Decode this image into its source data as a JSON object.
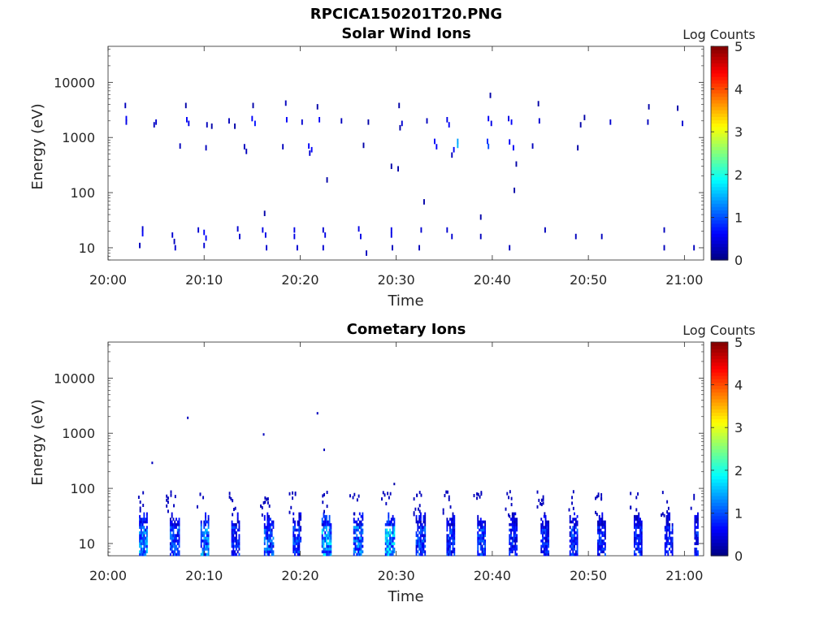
{
  "figure_title": "RPCICA150201T20.PNG",
  "chart_data": [
    {
      "type": "heatmap",
      "title": "Solar Wind Ions",
      "xlabel": "Time",
      "ylabel": "Energy (eV)",
      "y_scale": "log",
      "ylim": [
        6,
        45000
      ],
      "xlim": [
        "20:00",
        "21:02"
      ],
      "xticks": [
        "20:00",
        "20:10",
        "20:20",
        "20:30",
        "20:40",
        "20:50",
        "21:00"
      ],
      "yticks": [
        "10",
        "100",
        "1000",
        "10000"
      ],
      "colorbar": {
        "label": "Log Counts",
        "ticks": [
          "0",
          "1",
          "2",
          "3",
          "4",
          "5"
        ],
        "range": [
          0,
          5
        ],
        "colormap": "jet"
      },
      "grid": false,
      "cells_note": "x = minutes after 20:00, y = energy in eV, v = log counts",
      "cells": [
        {
          "x": 1.8,
          "y": 3800,
          "v": 0.3
        },
        {
          "x": 1.9,
          "y": 2200,
          "v": 0.6
        },
        {
          "x": 1.9,
          "y": 1900,
          "v": 0.5
        },
        {
          "x": 5.0,
          "y": 1900,
          "v": 0.4
        },
        {
          "x": 4.8,
          "y": 1700,
          "v": 0.3
        },
        {
          "x": 8.1,
          "y": 3800,
          "v": 0.2
        },
        {
          "x": 8.2,
          "y": 2100,
          "v": 0.6
        },
        {
          "x": 8.4,
          "y": 1800,
          "v": 0.5
        },
        {
          "x": 10.3,
          "y": 1700,
          "v": 0.3
        },
        {
          "x": 10.8,
          "y": 1600,
          "v": 0.2
        },
        {
          "x": 12.6,
          "y": 2000,
          "v": 0.3
        },
        {
          "x": 13.2,
          "y": 1600,
          "v": 0.2
        },
        {
          "x": 15.0,
          "y": 2200,
          "v": 0.6
        },
        {
          "x": 15.3,
          "y": 1800,
          "v": 0.7
        },
        {
          "x": 15.1,
          "y": 3800,
          "v": 0.2
        },
        {
          "x": 18.5,
          "y": 4200,
          "v": 0.3
        },
        {
          "x": 18.6,
          "y": 2100,
          "v": 0.6
        },
        {
          "x": 20.2,
          "y": 1900,
          "v": 0.4
        },
        {
          "x": 21.8,
          "y": 3600,
          "v": 0.2
        },
        {
          "x": 22.0,
          "y": 2100,
          "v": 0.6
        },
        {
          "x": 24.3,
          "y": 2000,
          "v": 0.3
        },
        {
          "x": 27.1,
          "y": 1900,
          "v": 0.2
        },
        {
          "x": 30.3,
          "y": 3800,
          "v": 0.2
        },
        {
          "x": 30.6,
          "y": 1800,
          "v": 0.4
        },
        {
          "x": 30.4,
          "y": 1500,
          "v": 0.2
        },
        {
          "x": 33.2,
          "y": 2000,
          "v": 0.3
        },
        {
          "x": 35.3,
          "y": 2100,
          "v": 0.5
        },
        {
          "x": 35.5,
          "y": 1700,
          "v": 0.6
        },
        {
          "x": 39.8,
          "y": 5800,
          "v": 0.2
        },
        {
          "x": 39.6,
          "y": 2200,
          "v": 0.6
        },
        {
          "x": 39.9,
          "y": 1800,
          "v": 0.5
        },
        {
          "x": 41.7,
          "y": 2200,
          "v": 0.5
        },
        {
          "x": 42.0,
          "y": 1900,
          "v": 0.6
        },
        {
          "x": 44.8,
          "y": 4100,
          "v": 0.2
        },
        {
          "x": 44.9,
          "y": 2000,
          "v": 0.4
        },
        {
          "x": 49.2,
          "y": 1700,
          "v": 0.2
        },
        {
          "x": 49.6,
          "y": 2300,
          "v": 0.2
        },
        {
          "x": 52.3,
          "y": 1900,
          "v": 0.4
        },
        {
          "x": 56.3,
          "y": 3600,
          "v": 0.2
        },
        {
          "x": 56.2,
          "y": 1900,
          "v": 0.3
        },
        {
          "x": 59.3,
          "y": 3400,
          "v": 0.2
        },
        {
          "x": 59.8,
          "y": 1800,
          "v": 0.4
        },
        {
          "x": 7.5,
          "y": 700,
          "v": 0.3
        },
        {
          "x": 10.2,
          "y": 650,
          "v": 0.3
        },
        {
          "x": 14.2,
          "y": 680,
          "v": 0.3
        },
        {
          "x": 14.4,
          "y": 560,
          "v": 0.3
        },
        {
          "x": 18.2,
          "y": 680,
          "v": 0.3
        },
        {
          "x": 20.9,
          "y": 700,
          "v": 0.6
        },
        {
          "x": 21.2,
          "y": 600,
          "v": 0.6
        },
        {
          "x": 21.0,
          "y": 520,
          "v": 0.4
        },
        {
          "x": 26.6,
          "y": 720,
          "v": 0.2
        },
        {
          "x": 34.0,
          "y": 850,
          "v": 0.6
        },
        {
          "x": 34.2,
          "y": 680,
          "v": 0.6
        },
        {
          "x": 36.4,
          "y": 850,
          "v": 1.4
        },
        {
          "x": 36.4,
          "y": 720,
          "v": 1.5
        },
        {
          "x": 36.0,
          "y": 600,
          "v": 0.6
        },
        {
          "x": 39.5,
          "y": 850,
          "v": 0.8
        },
        {
          "x": 39.6,
          "y": 690,
          "v": 1.0
        },
        {
          "x": 41.8,
          "y": 830,
          "v": 0.6
        },
        {
          "x": 42.2,
          "y": 650,
          "v": 0.6
        },
        {
          "x": 44.2,
          "y": 700,
          "v": 0.3
        },
        {
          "x": 48.9,
          "y": 650,
          "v": 0.2
        },
        {
          "x": 35.8,
          "y": 480,
          "v": 0.3
        },
        {
          "x": 42.5,
          "y": 330,
          "v": 0.2
        },
        {
          "x": 29.5,
          "y": 300,
          "v": 0.2
        },
        {
          "x": 30.2,
          "y": 270,
          "v": 0.2
        },
        {
          "x": 22.8,
          "y": 170,
          "v": 0.2
        },
        {
          "x": 42.3,
          "y": 110,
          "v": 0.2
        },
        {
          "x": 32.9,
          "y": 68,
          "v": 0.2
        },
        {
          "x": 16.3,
          "y": 42,
          "v": 0.2
        },
        {
          "x": 38.8,
          "y": 36,
          "v": 0.2
        },
        {
          "x": 3.6,
          "y": 22,
          "v": 0.4
        },
        {
          "x": 3.6,
          "y": 18,
          "v": 0.6
        },
        {
          "x": 6.7,
          "y": 17,
          "v": 0.4
        },
        {
          "x": 6.9,
          "y": 13,
          "v": 0.3
        },
        {
          "x": 9.4,
          "y": 21,
          "v": 0.4
        },
        {
          "x": 10.0,
          "y": 19,
          "v": 0.6
        },
        {
          "x": 10.2,
          "y": 15,
          "v": 0.6
        },
        {
          "x": 13.5,
          "y": 22,
          "v": 0.4
        },
        {
          "x": 13.7,
          "y": 16,
          "v": 0.4
        },
        {
          "x": 16.1,
          "y": 21,
          "v": 0.5
        },
        {
          "x": 16.4,
          "y": 17,
          "v": 0.5
        },
        {
          "x": 19.4,
          "y": 21,
          "v": 0.5
        },
        {
          "x": 19.4,
          "y": 16,
          "v": 0.5
        },
        {
          "x": 22.4,
          "y": 21,
          "v": 0.4
        },
        {
          "x": 22.6,
          "y": 17,
          "v": 0.5
        },
        {
          "x": 26.1,
          "y": 22,
          "v": 0.5
        },
        {
          "x": 26.3,
          "y": 16,
          "v": 0.5
        },
        {
          "x": 29.5,
          "y": 21,
          "v": 0.5
        },
        {
          "x": 29.5,
          "y": 17,
          "v": 0.5
        },
        {
          "x": 32.6,
          "y": 21,
          "v": 0.4
        },
        {
          "x": 35.3,
          "y": 21,
          "v": 0.4
        },
        {
          "x": 35.8,
          "y": 16,
          "v": 0.4
        },
        {
          "x": 38.8,
          "y": 16,
          "v": 0.3
        },
        {
          "x": 45.5,
          "y": 21,
          "v": 0.3
        },
        {
          "x": 48.7,
          "y": 16,
          "v": 0.3
        },
        {
          "x": 51.4,
          "y": 16,
          "v": 0.3
        },
        {
          "x": 57.9,
          "y": 21,
          "v": 0.3
        },
        {
          "x": 3.3,
          "y": 11,
          "v": 0.3
        },
        {
          "x": 7.0,
          "y": 10,
          "v": 0.4
        },
        {
          "x": 10.0,
          "y": 11,
          "v": 0.4
        },
        {
          "x": 16.5,
          "y": 10,
          "v": 0.4
        },
        {
          "x": 19.7,
          "y": 10,
          "v": 0.4
        },
        {
          "x": 22.4,
          "y": 10,
          "v": 0.4
        },
        {
          "x": 26.9,
          "y": 8,
          "v": 0.3
        },
        {
          "x": 29.6,
          "y": 10,
          "v": 0.3
        },
        {
          "x": 32.4,
          "y": 10,
          "v": 0.3
        },
        {
          "x": 41.8,
          "y": 10,
          "v": 0.3
        },
        {
          "x": 57.9,
          "y": 10,
          "v": 0.3
        },
        {
          "x": 61.0,
          "y": 10,
          "v": 0.3
        }
      ]
    },
    {
      "type": "heatmap",
      "title": "Cometary Ions",
      "xlabel": "Time",
      "ylabel": "Energy (eV)",
      "y_scale": "log",
      "ylim": [
        6,
        45000
      ],
      "xlim": [
        "20:00",
        "21:02"
      ],
      "xticks": [
        "20:00",
        "20:10",
        "20:20",
        "20:30",
        "20:40",
        "20:50",
        "21:00"
      ],
      "yticks": [
        "10",
        "100",
        "1000",
        "10000"
      ],
      "colorbar": {
        "label": "Log Counts",
        "ticks": [
          "0",
          "1",
          "2",
          "3",
          "4",
          "5"
        ],
        "range": [
          0,
          5
        ],
        "colormap": "jet"
      },
      "grid": false,
      "cells_note": "x = minutes after 20:00, y = energy in eV, v = log counts",
      "sparse_cells": [
        {
          "x": 8.3,
          "y": 1900,
          "v": 0.3
        },
        {
          "x": 16.2,
          "y": 950,
          "v": 0.3
        },
        {
          "x": 21.8,
          "y": 2300,
          "v": 0.3
        },
        {
          "x": 22.5,
          "y": 500,
          "v": 0.3
        },
        {
          "x": 4.6,
          "y": 290,
          "v": 0.3
        },
        {
          "x": 29.8,
          "y": 120,
          "v": 0.2
        }
      ],
      "bursts": [
        {
          "x": 3.3,
          "w": 0.9,
          "v": 1.3
        },
        {
          "x": 6.5,
          "w": 1.0,
          "v": 1.0
        },
        {
          "x": 9.7,
          "w": 0.9,
          "v": 1.3
        },
        {
          "x": 12.9,
          "w": 0.9,
          "v": 0.9
        },
        {
          "x": 16.3,
          "w": 1.0,
          "v": 1.1
        },
        {
          "x": 19.3,
          "w": 0.9,
          "v": 0.9
        },
        {
          "x": 22.3,
          "w": 1.0,
          "v": 1.5
        },
        {
          "x": 25.6,
          "w": 1.0,
          "v": 1.2
        },
        {
          "x": 28.9,
          "w": 1.0,
          "v": 1.6
        },
        {
          "x": 32.1,
          "w": 1.0,
          "v": 1.0
        },
        {
          "x": 35.3,
          "w": 0.9,
          "v": 0.9
        },
        {
          "x": 38.5,
          "w": 0.9,
          "v": 0.9
        },
        {
          "x": 41.8,
          "w": 0.9,
          "v": 0.8
        },
        {
          "x": 45.1,
          "w": 0.9,
          "v": 0.8
        },
        {
          "x": 48.1,
          "w": 0.9,
          "v": 0.9
        },
        {
          "x": 51.0,
          "w": 0.9,
          "v": 0.8
        },
        {
          "x": 54.8,
          "w": 0.9,
          "v": 0.8
        },
        {
          "x": 58.0,
          "w": 0.9,
          "v": 0.8
        },
        {
          "x": 61.1,
          "w": 0.5,
          "v": 0.8
        }
      ]
    }
  ]
}
